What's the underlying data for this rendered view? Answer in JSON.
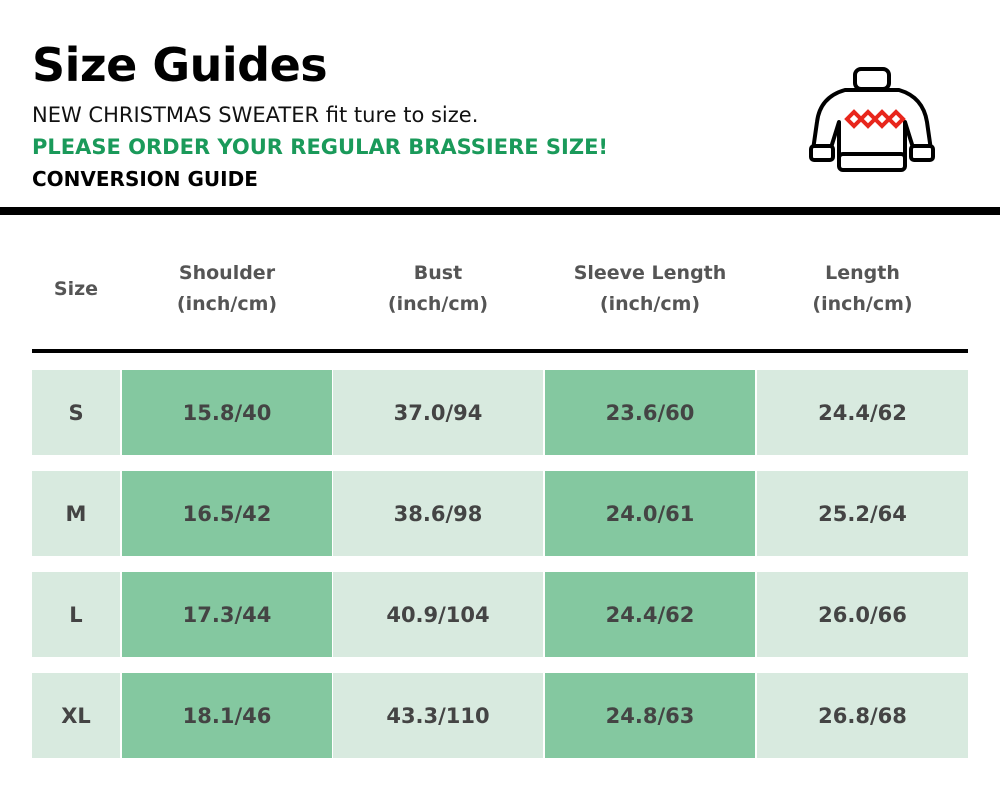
{
  "title": "Size Guides",
  "subtitle": "NEW CHRISTMAS SWEATER fit ture to size.",
  "notice": "PLEASE ORDER YOUR REGULAR BRASSIERE SIZE!",
  "conversion": "CONVERSION GUIDE",
  "icon": "sweater-icon",
  "colors": {
    "accent": "#1a9a5a",
    "light_cell": "#d8eadf",
    "dark_cell": "#84c8a0"
  },
  "headers": [
    [
      "Size",
      ""
    ],
    [
      "Shoulder",
      "(inch/cm)"
    ],
    [
      "Bust",
      "(inch/cm)"
    ],
    [
      "Sleeve Length",
      "(inch/cm)"
    ],
    [
      "Length",
      "(inch/cm)"
    ]
  ],
  "rows": [
    [
      "S",
      "15.8/40",
      "37.0/94",
      "23.6/60",
      "24.4/62"
    ],
    [
      "M",
      "16.5/42",
      "38.6/98",
      "24.0/61",
      "25.2/64"
    ],
    [
      "L",
      "17.3/44",
      "40.9/104",
      "24.4/62",
      "26.0/66"
    ],
    [
      "XL",
      "18.1/46",
      "43.3/110",
      "24.8/63",
      "26.8/68"
    ]
  ]
}
